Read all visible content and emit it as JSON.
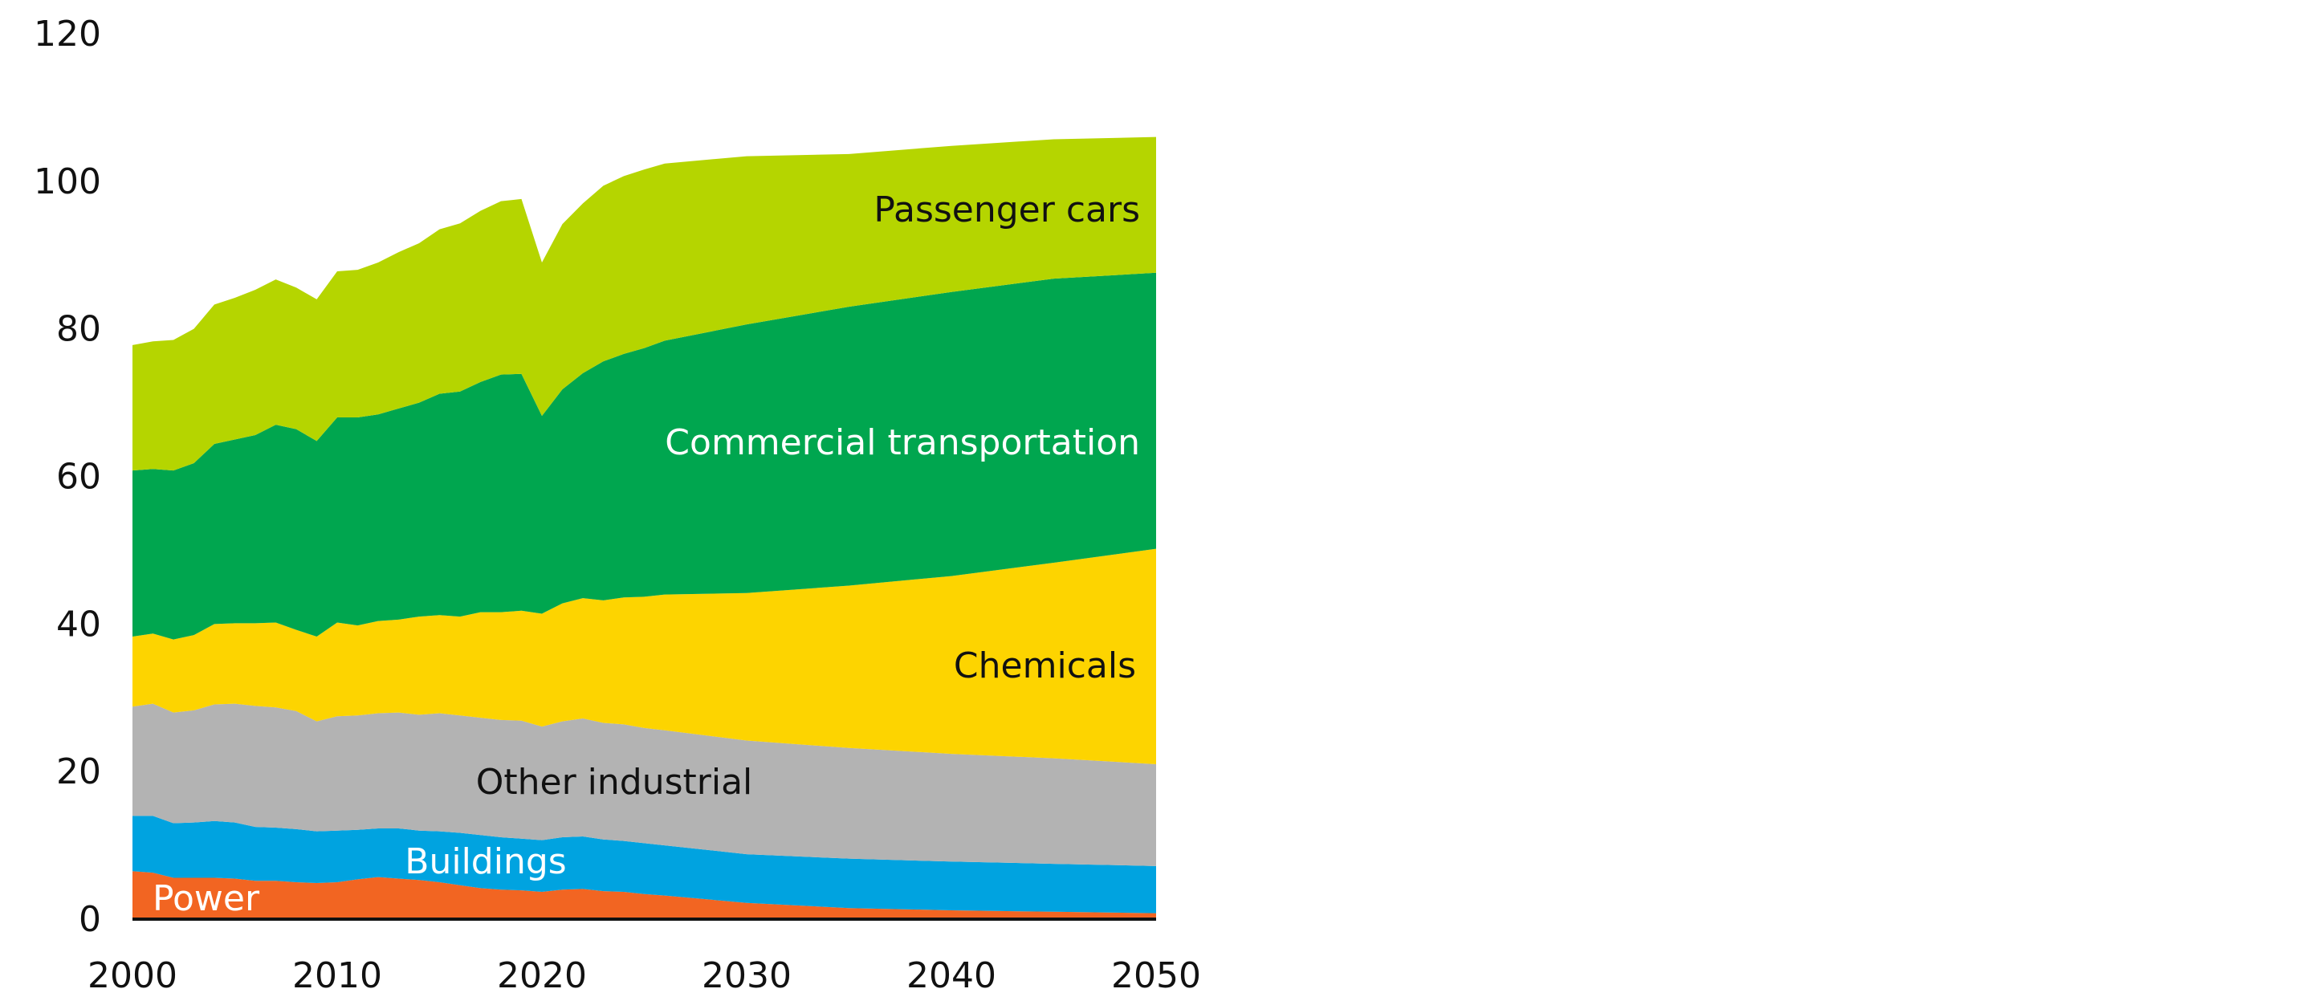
{
  "chart_data": {
    "type": "area",
    "stacked": true,
    "title": "",
    "xlabel": "",
    "ylabel": "",
    "xlim": [
      2000,
      2050
    ],
    "ylim": [
      0,
      120
    ],
    "x_ticks": [
      "2000",
      "2010",
      "2020",
      "2030",
      "2040",
      "2050"
    ],
    "y_ticks": [
      "0",
      "20",
      "40",
      "60",
      "80",
      "100",
      "120"
    ],
    "grid": false,
    "legend": "inline labels",
    "x": [
      2000,
      2001,
      2002,
      2003,
      2004,
      2005,
      2006,
      2007,
      2008,
      2009,
      2010,
      2011,
      2012,
      2013,
      2014,
      2015,
      2016,
      2017,
      2018,
      2019,
      2020,
      2021,
      2022,
      2023,
      2024,
      2025,
      2026,
      2030,
      2035,
      2040,
      2045,
      2050
    ],
    "series": [
      {
        "name": "Power",
        "color": "#f26522",
        "label_color": "#ffffff",
        "values": [
          6.5,
          6.3,
          5.6,
          5.6,
          5.6,
          5.5,
          5.2,
          5.2,
          5.0,
          4.9,
          5.0,
          5.4,
          5.7,
          5.5,
          5.3,
          5.0,
          4.6,
          4.2,
          4.0,
          3.9,
          3.7,
          4.0,
          4.1,
          3.8,
          3.7,
          3.4,
          3.2,
          2.2,
          1.5,
          1.2,
          1.0,
          0.8
        ]
      },
      {
        "name": "Buildings",
        "color": "#00a3e0",
        "label_color": "#ffffff",
        "values": [
          7.5,
          7.7,
          7.4,
          7.5,
          7.7,
          7.6,
          7.3,
          7.2,
          7.2,
          7.0,
          7.0,
          6.7,
          6.6,
          6.8,
          6.7,
          6.9,
          7.1,
          7.2,
          7.1,
          7.0,
          7.0,
          7.1,
          7.1,
          7.0,
          6.9,
          6.9,
          6.8,
          6.6,
          6.7,
          6.6,
          6.5,
          6.4
        ]
      },
      {
        "name": "Other industrial",
        "color": "#b3b3b3",
        "label_color": "#111111",
        "values": [
          14.8,
          15.2,
          15.0,
          15.2,
          15.8,
          16.1,
          16.4,
          16.3,
          16.0,
          14.9,
          15.5,
          15.5,
          15.6,
          15.7,
          15.7,
          16.0,
          15.9,
          15.9,
          15.9,
          16.0,
          15.4,
          15.7,
          16.0,
          15.8,
          15.8,
          15.6,
          15.6,
          15.4,
          15.0,
          14.6,
          14.3,
          13.8
        ]
      },
      {
        "name": "Chemicals",
        "color": "#fdd400",
        "label_color": "#111111",
        "values": [
          9.5,
          9.5,
          9.9,
          10.2,
          10.9,
          10.9,
          11.2,
          11.5,
          11.0,
          11.5,
          12.7,
          12.2,
          12.5,
          12.6,
          13.3,
          13.3,
          13.4,
          14.3,
          14.6,
          14.9,
          15.3,
          16.0,
          16.3,
          16.6,
          17.2,
          17.8,
          18.4,
          20.0,
          22.0,
          24.1,
          26.5,
          29.2
        ]
      },
      {
        "name": "Commercial transportation",
        "color": "#00a64f",
        "label_color": "#ffffff",
        "values": [
          22.5,
          22.3,
          22.9,
          23.3,
          24.4,
          24.9,
          25.5,
          26.8,
          27.2,
          26.5,
          27.8,
          28.2,
          28.0,
          28.6,
          29.0,
          30.0,
          30.5,
          31.2,
          32.2,
          32.1,
          26.8,
          29.0,
          30.5,
          32.4,
          33.0,
          33.7,
          34.4,
          36.4,
          37.8,
          38.5,
          38.5,
          37.4
        ]
      },
      {
        "name": "Passenger cars",
        "color": "#b5d500",
        "label_color": "#111111",
        "values": [
          17.0,
          17.3,
          17.7,
          18.2,
          18.9,
          19.2,
          19.7,
          19.7,
          19.2,
          19.2,
          19.8,
          20.0,
          20.6,
          21.2,
          21.6,
          22.3,
          22.8,
          23.2,
          23.5,
          23.7,
          20.8,
          22.4,
          23.0,
          23.8,
          24.1,
          24.2,
          24.0,
          22.8,
          20.7,
          19.8,
          18.9,
          18.4
        ]
      }
    ]
  }
}
